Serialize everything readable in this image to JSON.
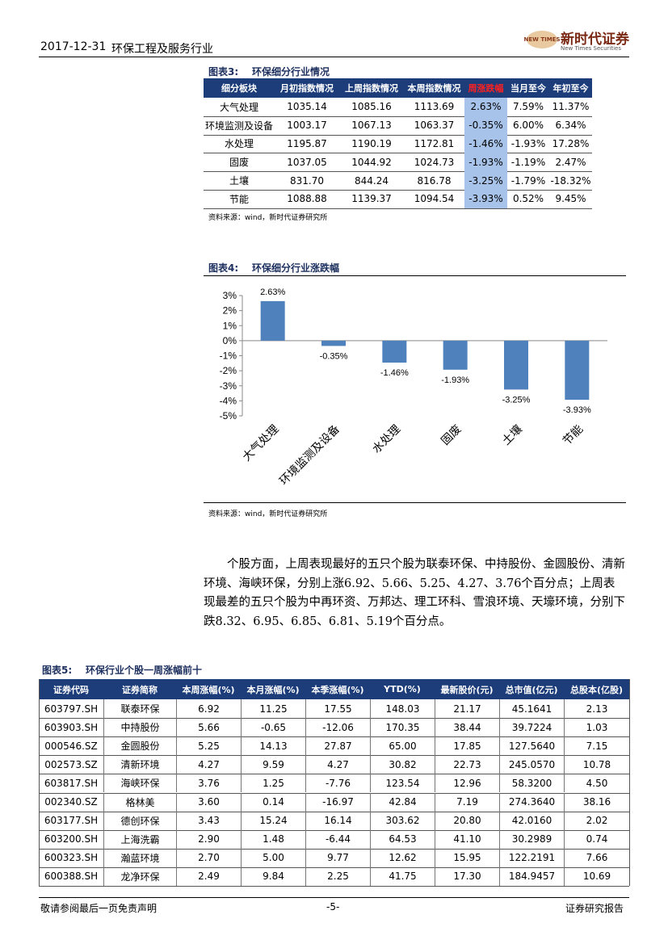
{
  "header": {
    "date": "2017-12-31",
    "title": "环保工程及服务行业",
    "logo_badge": "NEW TIMES",
    "logo_name": "新时代证券",
    "logo_sub": "New Times Securities"
  },
  "table3": {
    "caption_label": "图表3:",
    "caption_title": "环保细分行业情况",
    "columns": [
      "细分板块",
      "月初指数情况",
      "上周指数情况",
      "本周指数情况",
      "周涨跌幅",
      "当月至今",
      "年初至今"
    ],
    "rows": [
      [
        "大气处理",
        "1035.14",
        "1085.16",
        "1113.69",
        "2.63%",
        "7.59%",
        "11.37%"
      ],
      [
        "环境监测及设备",
        "1003.17",
        "1067.13",
        "1063.37",
        "-0.35%",
        "6.00%",
        "6.34%"
      ],
      [
        "水处理",
        "1195.87",
        "1190.19",
        "1172.81",
        "-1.46%",
        "-1.93%",
        "17.28%"
      ],
      [
        "固废",
        "1037.05",
        "1044.92",
        "1024.73",
        "-1.93%",
        "-1.19%",
        "2.47%"
      ],
      [
        "土壤",
        "831.70",
        "844.24",
        "816.78",
        "-3.25%",
        "-1.79%",
        "-18.32%"
      ],
      [
        "节能",
        "1088.88",
        "1139.37",
        "1094.54",
        "-3.93%",
        "0.52%",
        "9.45%"
      ]
    ],
    "source": "资料来源：wind，新时代证券研究所"
  },
  "chart_data": {
    "type": "bar",
    "caption_label": "图表4:",
    "title": "环保细分行业涨跌幅",
    "categories": [
      "大气处理",
      "环境监测及设备",
      "水处理",
      "固废",
      "土壤",
      "节能"
    ],
    "values": [
      2.63,
      -0.35,
      -1.46,
      -1.93,
      -3.25,
      -3.93
    ],
    "value_labels": [
      "2.63%",
      "-0.35%",
      "-1.46%",
      "-1.93%",
      "-3.25%",
      "-3.93%"
    ],
    "color": "#4f81bd",
    "ylim": [
      -5,
      3
    ],
    "yticks": [
      {
        "value": 3,
        "label": "3%"
      },
      {
        "value": 2,
        "label": "2%"
      },
      {
        "value": 1,
        "label": "1%"
      },
      {
        "value": 0,
        "label": "0%"
      },
      {
        "value": -1,
        "label": "-1%"
      },
      {
        "value": -2,
        "label": "-2%"
      },
      {
        "value": -3,
        "label": "-3%"
      },
      {
        "value": -4,
        "label": "-4%"
      },
      {
        "value": -5,
        "label": "-5%"
      }
    ],
    "grid": false,
    "source": "资料来源：wind，新时代证券研究所"
  },
  "paragraph": "个股方面，上周表现最好的五只个股为联泰环保、中持股份、金圆股份、清新环境、海峡环保，分别上涨6.92、5.66、5.25、4.27、3.76个百分点；上周表现最差的五只个股为中再环资、万邦达、理工环科、雪浪环境、天壕环境，分别下跌8.32、6.95、6.85、6.81、5.19个百分点。",
  "table5": {
    "caption_label": "图表5:",
    "caption_title": "环保行业个股一周涨幅前十",
    "columns": [
      "证券代码",
      "证券简称",
      "本周涨幅(%)",
      "本月涨幅(%)",
      "本季涨幅(%)",
      "YTD(%)",
      "最新股价(元)",
      "总市值(亿元)",
      "总股本(亿股)"
    ],
    "rows": [
      [
        "603797.SH",
        "联泰环保",
        "6.92",
        "11.25",
        "17.55",
        "148.03",
        "21.17",
        "45.1641",
        "2.13"
      ],
      [
        "603903.SH",
        "中持股份",
        "5.66",
        "-0.65",
        "-12.06",
        "170.35",
        "38.44",
        "39.7224",
        "1.03"
      ],
      [
        "000546.SZ",
        "金圆股份",
        "5.25",
        "14.13",
        "27.87",
        "65.00",
        "17.85",
        "127.5640",
        "7.15"
      ],
      [
        "002573.SZ",
        "清新环境",
        "4.27",
        "9.59",
        "4.27",
        "30.82",
        "22.73",
        "245.0570",
        "10.78"
      ],
      [
        "603817.SH",
        "海峡环保",
        "3.76",
        "1.25",
        "-7.76",
        "123.54",
        "12.96",
        "58.3200",
        "4.50"
      ],
      [
        "002340.SZ",
        "格林美",
        "3.60",
        "0.14",
        "-16.97",
        "42.84",
        "7.19",
        "274.3640",
        "38.16"
      ],
      [
        "603177.SH",
        "德创环保",
        "3.43",
        "15.24",
        "16.14",
        "303.62",
        "20.80",
        "42.0160",
        "2.02"
      ],
      [
        "603200.SH",
        "上海洗霸",
        "2.90",
        "1.48",
        "-6.44",
        "64.53",
        "41.10",
        "30.2989",
        "0.74"
      ],
      [
        "600323.SH",
        "瀚蓝环境",
        "2.70",
        "5.00",
        "9.77",
        "12.62",
        "15.95",
        "122.2191",
        "7.66"
      ],
      [
        "600388.SH",
        "龙净环保",
        "2.49",
        "9.84",
        "2.25",
        "41.75",
        "17.30",
        "184.9457",
        "10.69"
      ]
    ]
  },
  "footer": {
    "left": "敬请参阅最后一页免责声明",
    "center": "-5-",
    "right": "证券研究报告"
  }
}
